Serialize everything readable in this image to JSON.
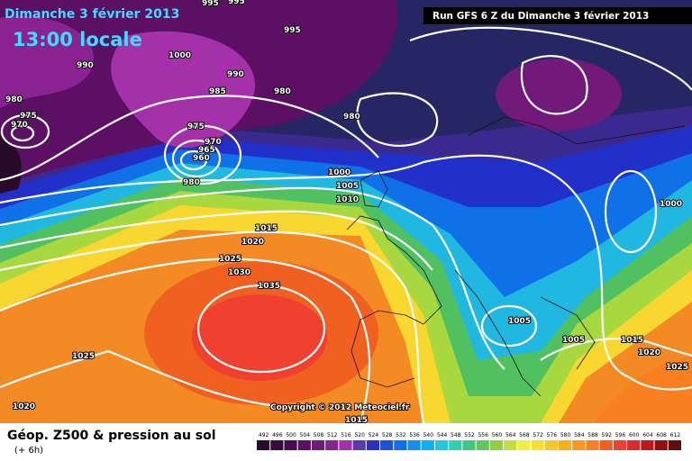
{
  "header": {
    "date": "Dimanche 3 février 2013",
    "time": "13:00 locale",
    "run": "Run GFS 6 Z du Dimanche 3 février 2013"
  },
  "isobar_labels": [
    "995",
    "995",
    "995",
    "990",
    "1000",
    "990",
    "985",
    "980",
    "980",
    "975",
    "970",
    "975",
    "970",
    "965",
    "960",
    "980",
    "980",
    "1000",
    "1005",
    "1010",
    "1015",
    "1020",
    "1025",
    "1030",
    "1035",
    "1025",
    "1020",
    "1015",
    "1005",
    "1005",
    "1015",
    "1020",
    "1025",
    "1000"
  ],
  "copyright": "Copyright © 2012 Meteociel.fr",
  "footer": {
    "title": "Géop. Z500 & pression au sol",
    "step": "(+ 6h)"
  },
  "legend": [
    {
      "label": 492,
      "color": "#2a0a2a"
    },
    {
      "label": 496,
      "color": "#3a0a3e"
    },
    {
      "label": 500,
      "color": "#4a0c50"
    },
    {
      "label": 504,
      "color": "#5c1064"
    },
    {
      "label": 508,
      "color": "#721a7c"
    },
    {
      "label": 512,
      "color": "#8a2292"
    },
    {
      "label": 516,
      "color": "#a430aa"
    },
    {
      "label": 520,
      "color": "#5a3ab0"
    },
    {
      "label": 524,
      "color": "#3030c0"
    },
    {
      "label": 528,
      "color": "#2050d8"
    },
    {
      "label": 532,
      "color": "#1070e8"
    },
    {
      "label": 536,
      "color": "#1090f0"
    },
    {
      "label": 540,
      "color": "#10b0f0"
    },
    {
      "label": 544,
      "color": "#20c8e0"
    },
    {
      "label": 548,
      "color": "#30d0b0"
    },
    {
      "label": 552,
      "color": "#40c880"
    },
    {
      "label": 556,
      "color": "#60c860"
    },
    {
      "label": 560,
      "color": "#90d040"
    },
    {
      "label": 564,
      "color": "#c0e040"
    },
    {
      "label": 568,
      "color": "#f0f040"
    },
    {
      "label": 572,
      "color": "#f8e030"
    },
    {
      "label": 576,
      "color": "#f8c828"
    },
    {
      "label": 580,
      "color": "#f8b020"
    },
    {
      "label": 584,
      "color": "#f89820"
    },
    {
      "label": 588,
      "color": "#f88020"
    },
    {
      "label": 592,
      "color": "#f06020"
    },
    {
      "label": 596,
      "color": "#f04030"
    },
    {
      "label": 600,
      "color": "#e02828"
    },
    {
      "label": 604,
      "color": "#c01818"
    },
    {
      "label": 608,
      "color": "#901010"
    },
    {
      "label": 612,
      "color": "#601010"
    }
  ]
}
